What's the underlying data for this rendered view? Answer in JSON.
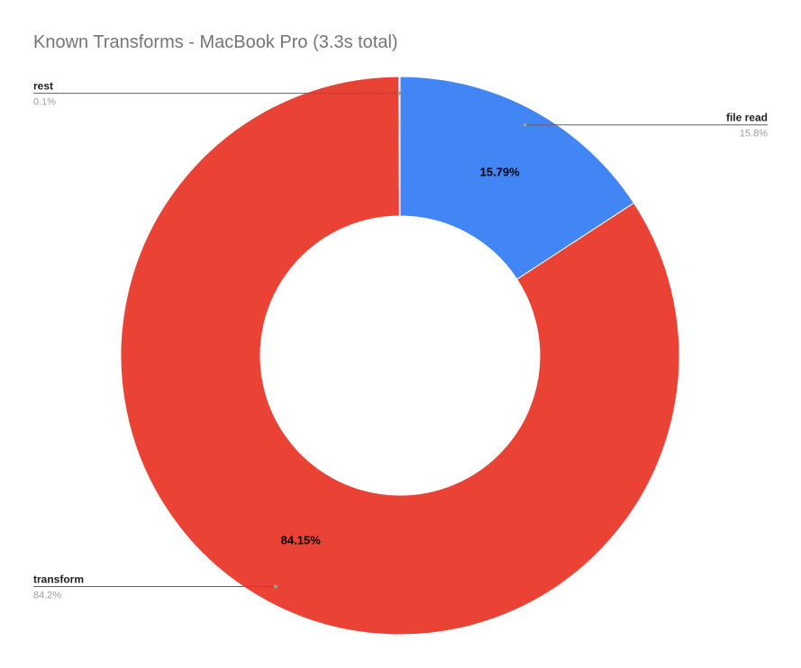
{
  "chart_data": {
    "type": "pie",
    "variant": "donut",
    "title": "Known Transforms - MacBook Pro (3.3s total)",
    "series": [
      {
        "name": "file read",
        "value": 15.79,
        "slice_label": "15.79%",
        "legend_pct": "15.8%",
        "color": "#4285f4",
        "side": "right"
      },
      {
        "name": "transform",
        "value": 84.15,
        "slice_label": "84.15%",
        "legend_pct": "84.2%",
        "color": "#ea4335",
        "side": "left"
      },
      {
        "name": "rest",
        "value": 0.06,
        "slice_label": "",
        "legend_pct": "0.1%",
        "color": "#fbbc04",
        "side": "left"
      }
    ]
  }
}
